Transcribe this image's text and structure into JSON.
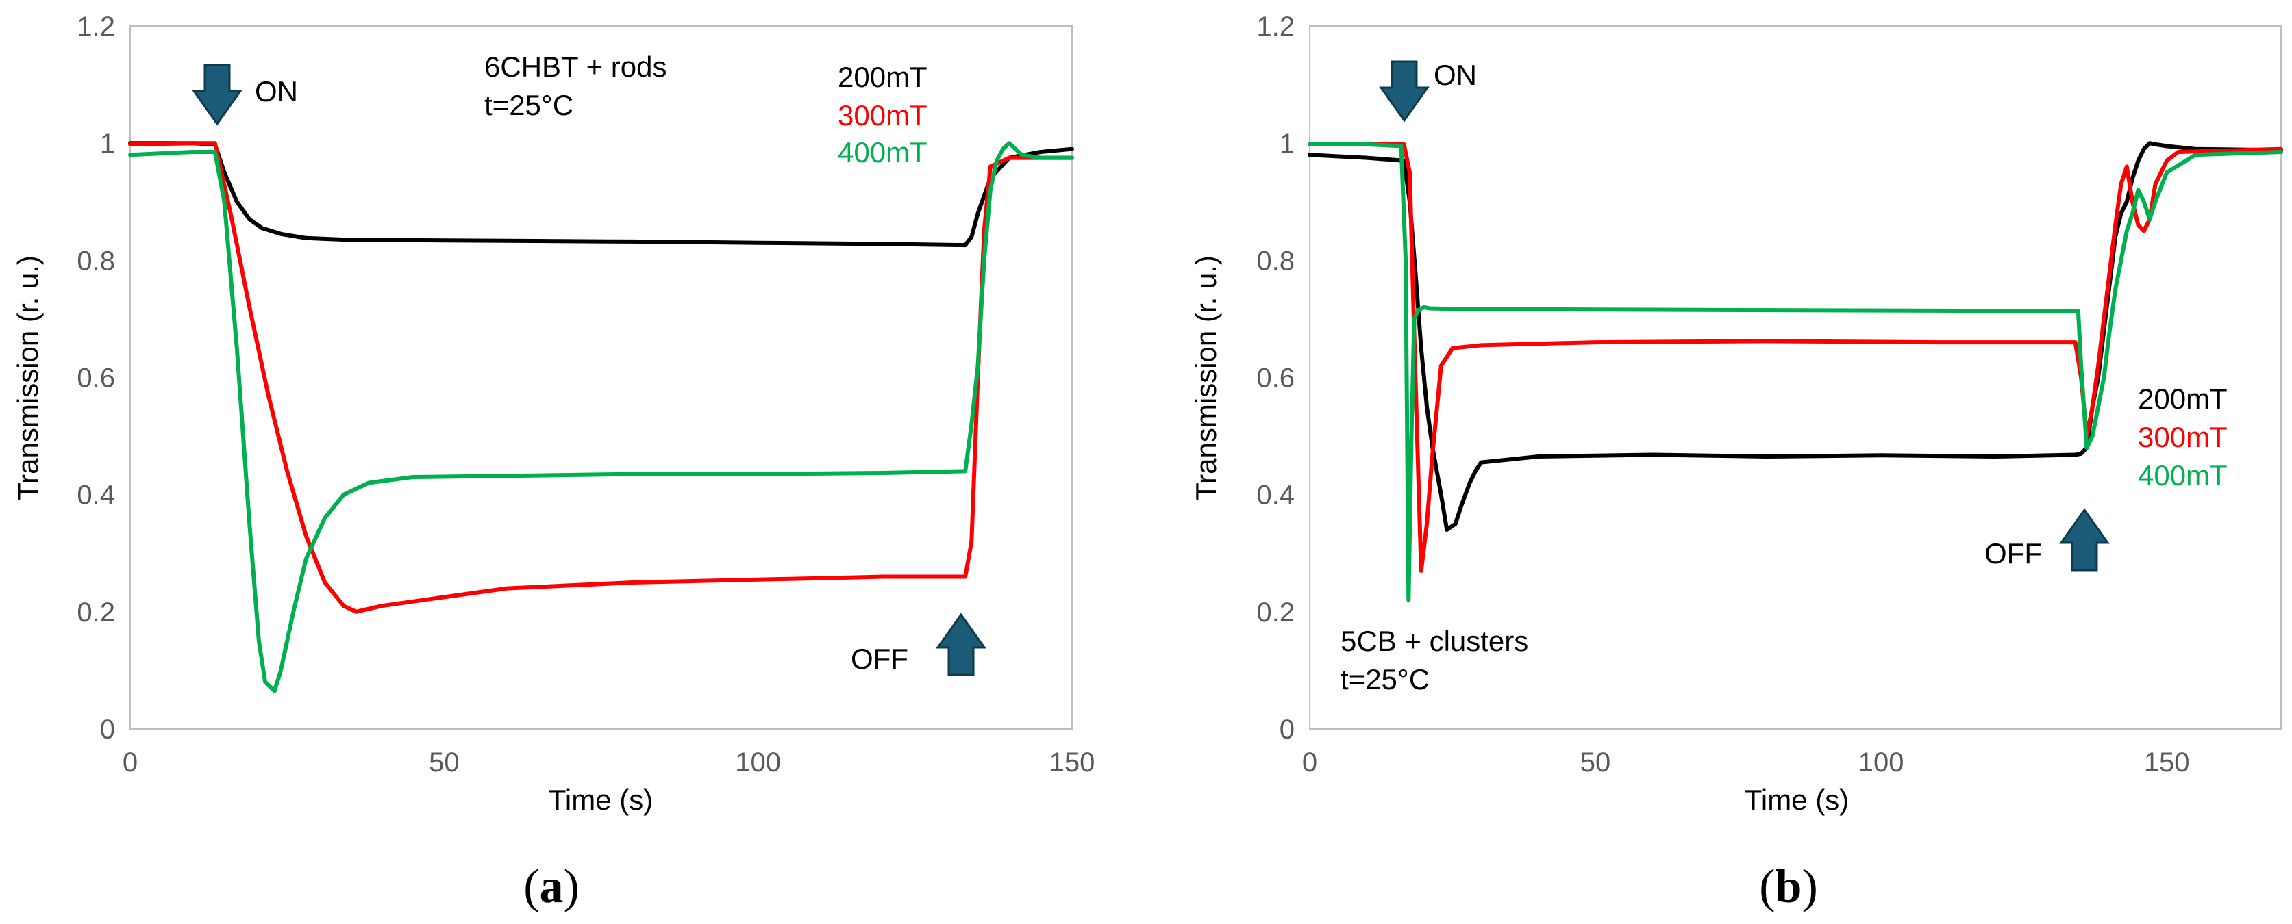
{
  "chart_data": [
    {
      "type": "line",
      "panel_label": "(a)",
      "panel_letter": "a",
      "xlabel": "Time (s)",
      "ylabel": "Transmission (r. u.)",
      "xlim": [
        0,
        150
      ],
      "ylim": [
        0,
        1.2
      ],
      "xticks": [
        "0",
        "50",
        "100",
        "150"
      ],
      "yticks": [
        "0",
        "0.2",
        "0.4",
        "0.6",
        "0.8",
        "1",
        "1.2"
      ],
      "grid": false,
      "annotations": {
        "sample": "6CHBT + rods",
        "temperature": "t=25°C",
        "on": "ON",
        "off": "OFF"
      },
      "series": [
        {
          "name": "200mT",
          "color": "#000000",
          "x": [
            0,
            10,
            13.5,
            15,
            17,
            19,
            21,
            24,
            28,
            35,
            50,
            80,
            100,
            120,
            133,
            134,
            135,
            137,
            140,
            145,
            150
          ],
          "y": [
            1.0,
            1.0,
            0.998,
            0.95,
            0.9,
            0.87,
            0.855,
            0.845,
            0.838,
            0.835,
            0.834,
            0.832,
            0.83,
            0.828,
            0.826,
            0.84,
            0.88,
            0.94,
            0.975,
            0.985,
            0.99
          ]
        },
        {
          "name": "300mT",
          "color": "#ff0000",
          "x": [
            0,
            10,
            13.5,
            16,
            19,
            22,
            25,
            28,
            31,
            34,
            36,
            40,
            50,
            60,
            80,
            100,
            120,
            133,
            134,
            135,
            136,
            137,
            140,
            145,
            150
          ],
          "y": [
            0.998,
            1.0,
            1.0,
            0.88,
            0.72,
            0.57,
            0.44,
            0.33,
            0.25,
            0.21,
            0.2,
            0.21,
            0.225,
            0.24,
            0.25,
            0.255,
            0.26,
            0.26,
            0.32,
            0.6,
            0.85,
            0.96,
            0.975,
            0.975,
            0.975
          ]
        },
        {
          "name": "400mT",
          "color": "#00b050",
          "x": [
            0,
            10,
            13.5,
            15,
            17,
            19,
            20.5,
            21.5,
            23,
            24,
            26,
            28,
            31,
            34,
            38,
            45,
            60,
            80,
            100,
            120,
            133,
            134,
            135,
            136,
            137,
            138,
            139,
            140,
            142,
            145,
            150
          ],
          "y": [
            0.98,
            0.985,
            0.985,
            0.9,
            0.65,
            0.35,
            0.15,
            0.08,
            0.065,
            0.1,
            0.2,
            0.29,
            0.36,
            0.4,
            0.42,
            0.43,
            0.432,
            0.435,
            0.435,
            0.437,
            0.44,
            0.52,
            0.62,
            0.8,
            0.92,
            0.97,
            0.99,
            1.0,
            0.98,
            0.975,
            0.975
          ]
        }
      ]
    },
    {
      "type": "line",
      "panel_label": "(b)",
      "panel_letter": "b",
      "xlabel": "Time (s)",
      "ylabel": "Transmission (r. u.)",
      "xlim": [
        0,
        170
      ],
      "ylim": [
        0,
        1.2
      ],
      "xticks": [
        "0",
        "50",
        "100",
        "150"
      ],
      "yticks": [
        "0",
        "0.2",
        "0.4",
        "0.6",
        "0.8",
        "1",
        "1.2"
      ],
      "grid": false,
      "annotations": {
        "sample": "5CB + clusters",
        "temperature": "t=25°C",
        "on": "ON",
        "off": "OFF"
      },
      "series": [
        {
          "name": "200mT",
          "color": "#000000",
          "x": [
            0,
            10,
            16.5,
            17.5,
            18.5,
            19.5,
            20.5,
            21.5,
            23,
            24,
            25.5,
            26.5,
            28,
            29,
            30,
            40,
            60,
            80,
            100,
            120,
            134,
            135,
            136,
            137,
            138,
            139,
            140,
            141,
            142,
            143,
            144,
            145,
            146,
            147,
            148,
            150,
            155,
            170
          ],
          "y": [
            0.98,
            0.975,
            0.97,
            0.9,
            0.78,
            0.65,
            0.55,
            0.48,
            0.4,
            0.34,
            0.35,
            0.38,
            0.42,
            0.44,
            0.455,
            0.465,
            0.468,
            0.465,
            0.467,
            0.465,
            0.468,
            0.47,
            0.48,
            0.55,
            0.6,
            0.68,
            0.76,
            0.84,
            0.88,
            0.9,
            0.94,
            0.97,
            0.99,
            1.0,
            0.998,
            0.995,
            0.99,
            0.988
          ]
        },
        {
          "name": "300mT",
          "color": "#ff0000",
          "x": [
            0,
            10,
            16.5,
            17.5,
            18.5,
            19.5,
            20.5,
            21.5,
            23,
            25,
            30,
            50,
            80,
            110,
            134,
            135,
            136,
            137,
            138,
            139,
            140,
            141,
            142,
            143,
            144,
            145,
            146,
            147,
            148,
            150,
            152,
            170
          ],
          "y": [
            0.998,
            0.998,
            0.998,
            0.95,
            0.6,
            0.27,
            0.35,
            0.47,
            0.62,
            0.65,
            0.655,
            0.66,
            0.662,
            0.66,
            0.66,
            0.6,
            0.5,
            0.55,
            0.62,
            0.7,
            0.78,
            0.86,
            0.93,
            0.96,
            0.9,
            0.86,
            0.85,
            0.87,
            0.93,
            0.97,
            0.985,
            0.99
          ]
        },
        {
          "name": "400mT",
          "color": "#00b050",
          "x": [
            0,
            10,
            16,
            16.8,
            17.3,
            17.8,
            18.3,
            19,
            20,
            21,
            25,
            50,
            80,
            110,
            134.5,
            135,
            136,
            137,
            138,
            139,
            140,
            141,
            142,
            143,
            144,
            145,
            146,
            147,
            148,
            150,
            155,
            170
          ],
          "y": [
            0.998,
            0.998,
            0.995,
            0.8,
            0.22,
            0.5,
            0.7,
            0.715,
            0.72,
            0.718,
            0.717,
            0.716,
            0.715,
            0.714,
            0.713,
            0.62,
            0.48,
            0.5,
            0.55,
            0.6,
            0.68,
            0.75,
            0.8,
            0.85,
            0.88,
            0.92,
            0.9,
            0.87,
            0.9,
            0.95,
            0.98,
            0.985
          ]
        }
      ]
    }
  ]
}
